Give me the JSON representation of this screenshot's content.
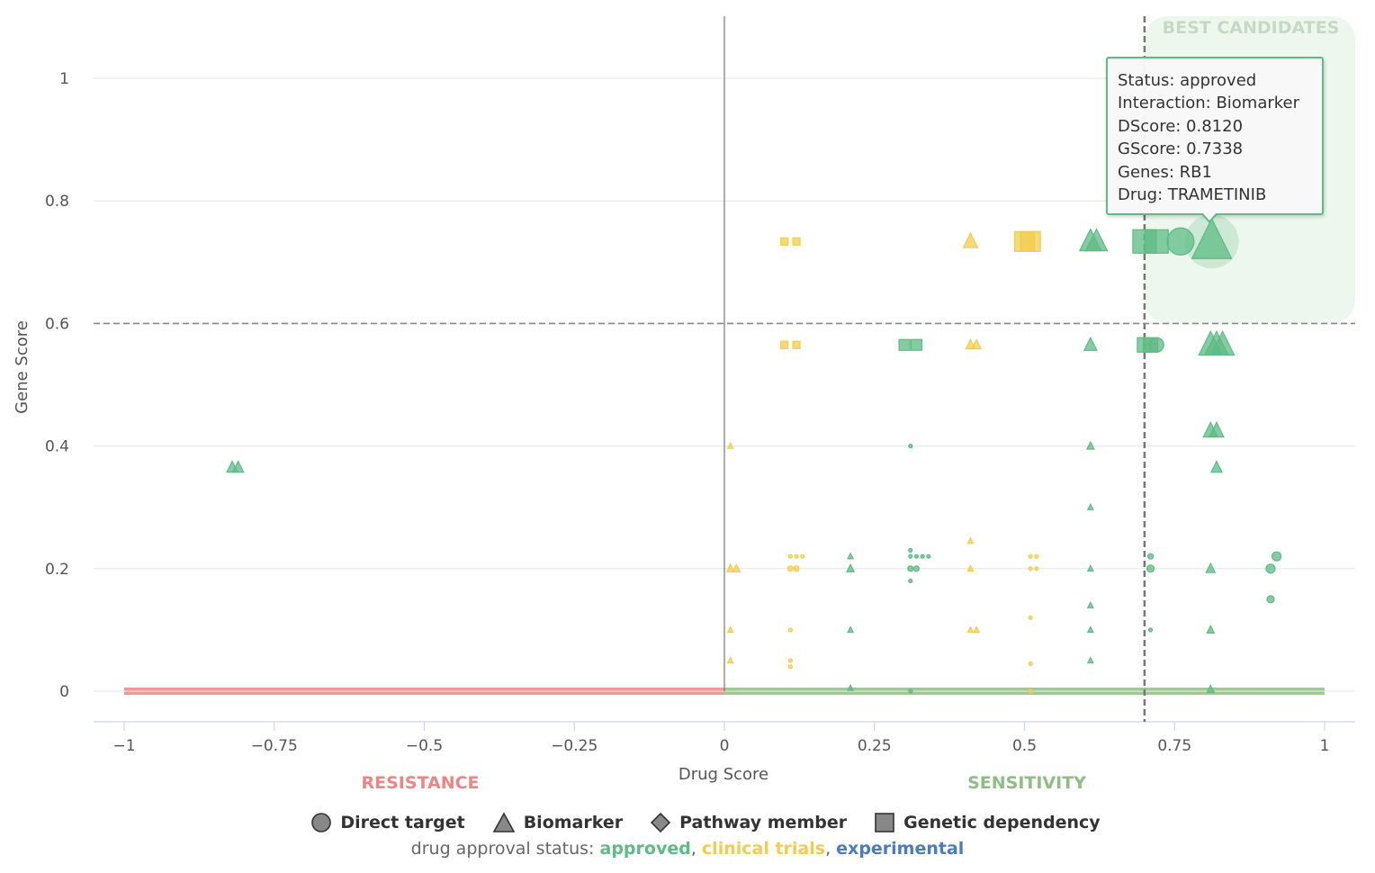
{
  "chart_data": {
    "type": "scatter",
    "xlabel": "Drug Score",
    "ylabel": "Gene Score",
    "xlim": [
      -1,
      1
    ],
    "ylim": [
      -0.05,
      1.1
    ],
    "x_ticks": [
      "−1",
      "−0.75",
      "−0.5",
      "−0.25",
      "0",
      "0.25",
      "0.5",
      "0.75",
      "1"
    ],
    "x_tick_values": [
      -1,
      -0.75,
      -0.5,
      -0.25,
      0,
      0.25,
      0.5,
      0.75,
      1
    ],
    "y_ticks": [
      "0",
      "0.2",
      "0.4",
      "0.6",
      "0.8",
      "1"
    ],
    "y_tick_values": [
      0,
      0.2,
      0.4,
      0.6,
      0.8,
      1
    ],
    "grid": "horizontal",
    "thresholds": {
      "drug_score": 0.7,
      "gene_score": 0.6
    },
    "zones": {
      "resistance": {
        "label": "RESISTANCE",
        "range": [
          -1,
          0
        ],
        "color": "#ee8585"
      },
      "sensitivity": {
        "label": "SENSITIVITY",
        "range": [
          0,
          1
        ],
        "color": "#8dbf82"
      },
      "best": {
        "label": "BEST CANDIDATES"
      }
    },
    "colors": {
      "approved": "#5dbb84",
      "clinical": "#f2cd4d",
      "experimental": "#4a7dbd"
    },
    "points": [
      {
        "x": 0.1,
        "y": 0.7338,
        "shape": "square",
        "status": "clinical",
        "size": 4
      },
      {
        "x": 0.12,
        "y": 0.7338,
        "shape": "square",
        "status": "clinical",
        "size": 4
      },
      {
        "x": 0.41,
        "y": 0.7338,
        "shape": "triangle",
        "status": "clinical",
        "size": 8
      },
      {
        "x": 0.5,
        "y": 0.7338,
        "shape": "square",
        "status": "clinical",
        "size": 11
      },
      {
        "x": 0.51,
        "y": 0.7338,
        "shape": "square",
        "status": "clinical",
        "size": 11
      },
      {
        "x": 0.61,
        "y": 0.7338,
        "shape": "triangle",
        "status": "approved",
        "size": 12
      },
      {
        "x": 0.62,
        "y": 0.7338,
        "shape": "triangle",
        "status": "approved",
        "size": 12
      },
      {
        "x": 0.7,
        "y": 0.7338,
        "shape": "square",
        "status": "approved",
        "size": 13
      },
      {
        "x": 0.72,
        "y": 0.7338,
        "shape": "square",
        "status": "approved",
        "size": 13
      },
      {
        "x": 0.76,
        "y": 0.7338,
        "shape": "circle",
        "status": "approved",
        "size": 15
      },
      {
        "x": 0.812,
        "y": 0.7338,
        "shape": "triangle",
        "status": "approved",
        "size": 22
      },
      {
        "x": 0.1,
        "y": 0.565,
        "shape": "square",
        "status": "clinical",
        "size": 4
      },
      {
        "x": 0.12,
        "y": 0.565,
        "shape": "square",
        "status": "clinical",
        "size": 4
      },
      {
        "x": 0.3,
        "y": 0.565,
        "shape": "square",
        "status": "approved",
        "size": 6
      },
      {
        "x": 0.32,
        "y": 0.565,
        "shape": "square",
        "status": "approved",
        "size": 6
      },
      {
        "x": 0.41,
        "y": 0.565,
        "shape": "triangle",
        "status": "clinical",
        "size": 5
      },
      {
        "x": 0.42,
        "y": 0.565,
        "shape": "triangle",
        "status": "clinical",
        "size": 5
      },
      {
        "x": 0.61,
        "y": 0.565,
        "shape": "triangle",
        "status": "approved",
        "size": 7
      },
      {
        "x": 0.7,
        "y": 0.565,
        "shape": "square",
        "status": "approved",
        "size": 8
      },
      {
        "x": 0.71,
        "y": 0.565,
        "shape": "square",
        "status": "approved",
        "size": 8
      },
      {
        "x": 0.72,
        "y": 0.565,
        "shape": "circle",
        "status": "approved",
        "size": 8
      },
      {
        "x": 0.81,
        "y": 0.565,
        "shape": "triangle",
        "status": "approved",
        "size": 13
      },
      {
        "x": 0.82,
        "y": 0.565,
        "shape": "triangle",
        "status": "approved",
        "size": 13
      },
      {
        "x": 0.83,
        "y": 0.565,
        "shape": "triangle",
        "status": "approved",
        "size": 13
      },
      {
        "x": 0.81,
        "y": 0.425,
        "shape": "triangle",
        "status": "approved",
        "size": 8
      },
      {
        "x": 0.82,
        "y": 0.425,
        "shape": "triangle",
        "status": "approved",
        "size": 8
      },
      {
        "x": 0.82,
        "y": 0.365,
        "shape": "triangle",
        "status": "approved",
        "size": 6
      },
      {
        "x": -0.82,
        "y": 0.365,
        "shape": "triangle",
        "status": "approved",
        "size": 6
      },
      {
        "x": -0.81,
        "y": 0.365,
        "shape": "triangle",
        "status": "approved",
        "size": 6
      },
      {
        "x": 0.01,
        "y": 0.4,
        "shape": "triangle",
        "status": "clinical",
        "size": 3
      },
      {
        "x": 0.31,
        "y": 0.4,
        "shape": "circle",
        "status": "approved",
        "size": 2
      },
      {
        "x": 0.61,
        "y": 0.4,
        "shape": "triangle",
        "status": "approved",
        "size": 4
      },
      {
        "x": 0.61,
        "y": 0.3,
        "shape": "triangle",
        "status": "approved",
        "size": 3
      },
      {
        "x": 0.41,
        "y": 0.245,
        "shape": "triangle",
        "status": "clinical",
        "size": 3
      },
      {
        "x": 0.31,
        "y": 0.23,
        "shape": "circle",
        "status": "approved",
        "size": 2
      },
      {
        "x": 0.11,
        "y": 0.22,
        "shape": "circle",
        "status": "clinical",
        "size": 2
      },
      {
        "x": 0.12,
        "y": 0.22,
        "shape": "circle",
        "status": "clinical",
        "size": 2
      },
      {
        "x": 0.13,
        "y": 0.22,
        "shape": "circle",
        "status": "clinical",
        "size": 2
      },
      {
        "x": 0.21,
        "y": 0.22,
        "shape": "triangle",
        "status": "approved",
        "size": 3
      },
      {
        "x": 0.31,
        "y": 0.22,
        "shape": "circle",
        "status": "approved",
        "size": 2
      },
      {
        "x": 0.32,
        "y": 0.22,
        "shape": "circle",
        "status": "approved",
        "size": 2
      },
      {
        "x": 0.33,
        "y": 0.22,
        "shape": "circle",
        "status": "approved",
        "size": 2
      },
      {
        "x": 0.34,
        "y": 0.22,
        "shape": "circle",
        "status": "approved",
        "size": 2
      },
      {
        "x": 0.51,
        "y": 0.22,
        "shape": "circle",
        "status": "clinical",
        "size": 2
      },
      {
        "x": 0.52,
        "y": 0.22,
        "shape": "circle",
        "status": "clinical",
        "size": 2
      },
      {
        "x": 0.71,
        "y": 0.22,
        "shape": "circle",
        "status": "approved",
        "size": 3
      },
      {
        "x": 0.92,
        "y": 0.22,
        "shape": "circle",
        "status": "approved",
        "size": 5
      },
      {
        "x": 0.01,
        "y": 0.2,
        "shape": "triangle",
        "status": "clinical",
        "size": 4
      },
      {
        "x": 0.02,
        "y": 0.2,
        "shape": "triangle",
        "status": "clinical",
        "size": 4
      },
      {
        "x": 0.11,
        "y": 0.2,
        "shape": "circle",
        "status": "clinical",
        "size": 3
      },
      {
        "x": 0.12,
        "y": 0.2,
        "shape": "circle",
        "status": "clinical",
        "size": 3
      },
      {
        "x": 0.21,
        "y": 0.2,
        "shape": "triangle",
        "status": "approved",
        "size": 4
      },
      {
        "x": 0.31,
        "y": 0.2,
        "shape": "circle",
        "status": "approved",
        "size": 3
      },
      {
        "x": 0.32,
        "y": 0.2,
        "shape": "circle",
        "status": "approved",
        "size": 3
      },
      {
        "x": 0.41,
        "y": 0.2,
        "shape": "triangle",
        "status": "clinical",
        "size": 3
      },
      {
        "x": 0.51,
        "y": 0.2,
        "shape": "circle",
        "status": "clinical",
        "size": 2
      },
      {
        "x": 0.52,
        "y": 0.2,
        "shape": "circle",
        "status": "clinical",
        "size": 2
      },
      {
        "x": 0.61,
        "y": 0.2,
        "shape": "triangle",
        "status": "approved",
        "size": 3
      },
      {
        "x": 0.71,
        "y": 0.2,
        "shape": "circle",
        "status": "approved",
        "size": 4
      },
      {
        "x": 0.81,
        "y": 0.2,
        "shape": "triangle",
        "status": "approved",
        "size": 5
      },
      {
        "x": 0.91,
        "y": 0.2,
        "shape": "circle",
        "status": "approved",
        "size": 5
      },
      {
        "x": 0.31,
        "y": 0.18,
        "shape": "circle",
        "status": "approved",
        "size": 2
      },
      {
        "x": 0.91,
        "y": 0.15,
        "shape": "circle",
        "status": "approved",
        "size": 4
      },
      {
        "x": 0.61,
        "y": 0.14,
        "shape": "triangle",
        "status": "approved",
        "size": 3
      },
      {
        "x": 0.51,
        "y": 0.12,
        "shape": "circle",
        "status": "clinical",
        "size": 2
      },
      {
        "x": 0.01,
        "y": 0.1,
        "shape": "triangle",
        "status": "clinical",
        "size": 3
      },
      {
        "x": 0.11,
        "y": 0.1,
        "shape": "circle",
        "status": "clinical",
        "size": 2
      },
      {
        "x": 0.21,
        "y": 0.1,
        "shape": "triangle",
        "status": "approved",
        "size": 3
      },
      {
        "x": 0.41,
        "y": 0.1,
        "shape": "triangle",
        "status": "clinical",
        "size": 3
      },
      {
        "x": 0.42,
        "y": 0.1,
        "shape": "triangle",
        "status": "clinical",
        "size": 3
      },
      {
        "x": 0.61,
        "y": 0.1,
        "shape": "triangle",
        "status": "approved",
        "size": 3
      },
      {
        "x": 0.71,
        "y": 0.1,
        "shape": "circle",
        "status": "approved",
        "size": 2
      },
      {
        "x": 0.81,
        "y": 0.1,
        "shape": "triangle",
        "status": "approved",
        "size": 4
      },
      {
        "x": 0.01,
        "y": 0.05,
        "shape": "triangle",
        "status": "clinical",
        "size": 3
      },
      {
        "x": 0.11,
        "y": 0.05,
        "shape": "circle",
        "status": "clinical",
        "size": 2
      },
      {
        "x": 0.11,
        "y": 0.04,
        "shape": "circle",
        "status": "clinical",
        "size": 2
      },
      {
        "x": 0.51,
        "y": 0.045,
        "shape": "circle",
        "status": "clinical",
        "size": 2
      },
      {
        "x": 0.61,
        "y": 0.05,
        "shape": "triangle",
        "status": "approved",
        "size": 3
      },
      {
        "x": 0.21,
        "y": 0.005,
        "shape": "triangle",
        "status": "approved",
        "size": 3
      },
      {
        "x": 0.31,
        "y": 0.0,
        "shape": "circle",
        "status": "approved",
        "size": 2
      },
      {
        "x": 0.51,
        "y": 0.0,
        "shape": "circle",
        "status": "clinical",
        "size": 2
      },
      {
        "x": 0.81,
        "y": 0.003,
        "shape": "triangle",
        "status": "approved",
        "size": 4
      }
    ],
    "highlight": {
      "x": 0.812,
      "y": 0.7338
    }
  },
  "tooltip": {
    "status": "Status: approved",
    "interaction": "Interaction: Biomarker",
    "dscore": "DScore: 0.8120",
    "gscore": "GScore: 0.7338",
    "genes": "Genes: RB1",
    "drug": "Drug: TRAMETINIB"
  },
  "legend": {
    "items": [
      {
        "label": "Direct target",
        "icon": "circle-icon"
      },
      {
        "label": "Biomarker",
        "icon": "triangle-icon"
      },
      {
        "label": "Pathway member",
        "icon": "diamond-icon"
      },
      {
        "label": "Genetic dependency",
        "icon": "square-icon"
      }
    ]
  },
  "status_line": {
    "prefix": "drug approval status: ",
    "approved": "approved",
    "sep1": ", ",
    "clinical": "clinical trials",
    "sep2": ", ",
    "experimental": "experimental"
  }
}
